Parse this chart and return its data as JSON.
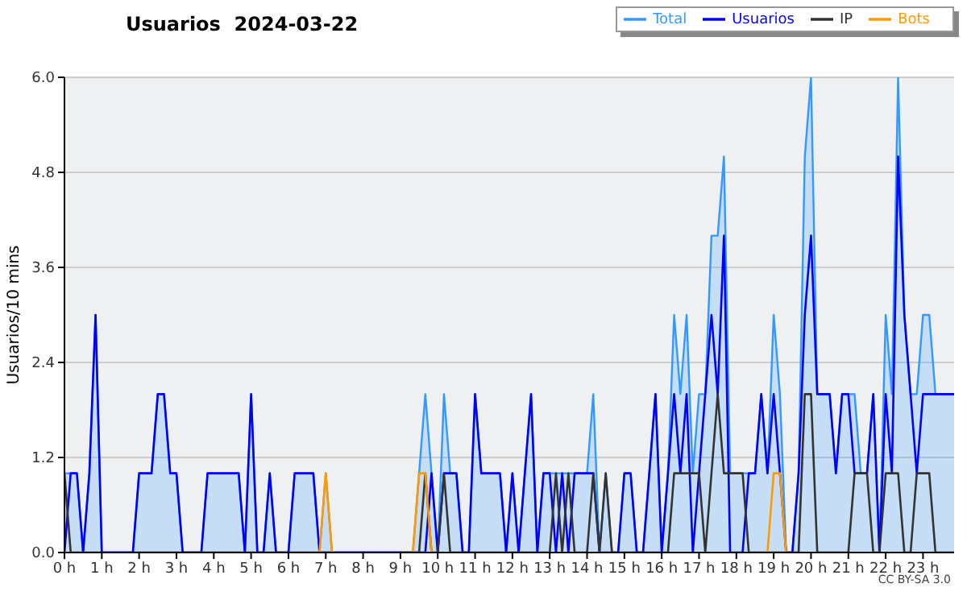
{
  "chart_data": {
    "type": "line",
    "title": "Usuarios  2024-03-22",
    "ylabel": "Usuarios/10 mins",
    "annotations": [
      "CC BY-SA 3.0"
    ],
    "x": [
      0,
      0.167,
      0.333,
      0.5,
      0.667,
      0.833,
      1,
      1.167,
      1.333,
      1.5,
      1.667,
      1.833,
      2,
      2.167,
      2.333,
      2.5,
      2.667,
      2.833,
      3,
      3.167,
      3.333,
      3.5,
      3.667,
      3.833,
      4,
      4.167,
      4.333,
      4.5,
      4.667,
      4.833,
      5,
      5.167,
      5.333,
      5.5,
      5.667,
      5.833,
      6,
      6.167,
      6.333,
      6.5,
      6.667,
      6.833,
      7,
      7.167,
      7.333,
      7.5,
      7.667,
      7.833,
      8,
      8.167,
      8.333,
      8.5,
      8.667,
      8.833,
      9,
      9.167,
      9.333,
      9.5,
      9.667,
      9.833,
      10,
      10.167,
      10.333,
      10.5,
      10.667,
      10.833,
      11,
      11.167,
      11.333,
      11.5,
      11.667,
      11.833,
      12,
      12.167,
      12.333,
      12.5,
      12.667,
      12.833,
      13,
      13.167,
      13.333,
      13.5,
      13.667,
      13.833,
      14,
      14.167,
      14.333,
      14.5,
      14.667,
      14.833,
      15,
      15.167,
      15.333,
      15.5,
      15.667,
      15.833,
      16,
      16.167,
      16.333,
      16.5,
      16.667,
      16.833,
      17,
      17.167,
      17.333,
      17.5,
      17.667,
      17.833,
      18,
      18.167,
      18.333,
      18.5,
      18.667,
      18.833,
      19,
      19.167,
      19.333,
      19.5,
      19.667,
      19.833,
      20,
      20.167,
      20.333,
      20.5,
      20.667,
      20.833,
      21,
      21.167,
      21.333,
      21.5,
      21.667,
      21.833,
      22,
      22.167,
      22.333,
      22.5,
      22.667,
      22.833,
      23,
      23.167,
      23.333,
      23.5,
      23.667,
      23.833
    ],
    "series": [
      {
        "name": "Total",
        "type": "area",
        "color": "#3399ff",
        "values": [
          1,
          1,
          1,
          0,
          1,
          3,
          0,
          0,
          0,
          0,
          0,
          0,
          1,
          1,
          1,
          2,
          2,
          1,
          1,
          0,
          0,
          0,
          0,
          1,
          1,
          1,
          1,
          1,
          1,
          0,
          2,
          0,
          0,
          1,
          0,
          0,
          0,
          1,
          1,
          1,
          1,
          0,
          1,
          0,
          0,
          0,
          0,
          0,
          0,
          0,
          0,
          0,
          0,
          0,
          0,
          0,
          0,
          1,
          2,
          1,
          0,
          2,
          1,
          1,
          0,
          0,
          2,
          1,
          1,
          1,
          1,
          0,
          1,
          0,
          1,
          2,
          0,
          1,
          1,
          1,
          1,
          1,
          1,
          1,
          1,
          2,
          0,
          1,
          0,
          0,
          1,
          1,
          0,
          0,
          1,
          2,
          0,
          1,
          3,
          2,
          3,
          1,
          2,
          2,
          4,
          4,
          5,
          1,
          1,
          1,
          1,
          1,
          2,
          1,
          3,
          2,
          0,
          0,
          1,
          5,
          6,
          2,
          2,
          2,
          1,
          2,
          2,
          2,
          1,
          1,
          2,
          0,
          3,
          2,
          6,
          3,
          2,
          2,
          3,
          3,
          2,
          2,
          2,
          2
        ]
      },
      {
        "name": "Usuarios",
        "color": "#0000ff",
        "values": [
          0,
          1,
          1,
          0,
          1,
          3,
          0,
          0,
          0,
          0,
          0,
          0,
          1,
          1,
          1,
          2,
          2,
          1,
          1,
          0,
          0,
          0,
          0,
          1,
          1,
          1,
          1,
          1,
          1,
          0,
          2,
          0,
          0,
          1,
          0,
          0,
          0,
          1,
          1,
          1,
          1,
          0,
          0,
          0,
          0,
          0,
          0,
          0,
          0,
          0,
          0,
          0,
          0,
          0,
          0,
          0,
          0,
          0,
          0,
          1,
          0,
          1,
          1,
          1,
          0,
          0,
          2,
          1,
          1,
          1,
          1,
          0,
          1,
          0,
          1,
          2,
          0,
          1,
          1,
          0,
          1,
          0,
          1,
          1,
          1,
          1,
          0,
          0,
          0,
          0,
          1,
          1,
          0,
          0,
          1,
          2,
          0,
          1,
          2,
          1,
          2,
          0,
          1,
          2,
          3,
          2,
          4,
          0,
          0,
          0,
          1,
          1,
          2,
          1,
          2,
          1,
          0,
          0,
          1,
          3,
          4,
          2,
          2,
          2,
          1,
          2,
          2,
          1,
          1,
          1,
          2,
          0,
          2,
          1,
          5,
          3,
          2,
          1,
          2,
          2,
          2,
          2,
          2,
          2
        ]
      },
      {
        "name": "IP",
        "color": "#333333",
        "values": [
          1,
          0,
          0,
          0,
          0,
          0,
          0,
          0,
          0,
          0,
          0,
          0,
          0,
          0,
          0,
          0,
          0,
          0,
          0,
          0,
          0,
          0,
          0,
          0,
          0,
          0,
          0,
          0,
          0,
          0,
          0,
          0,
          0,
          0,
          0,
          0,
          0,
          0,
          0,
          0,
          0,
          0,
          0,
          0,
          0,
          0,
          0,
          0,
          0,
          0,
          0,
          0,
          0,
          0,
          0,
          0,
          0,
          0,
          1,
          0,
          0,
          1,
          0,
          0,
          0,
          0,
          0,
          0,
          0,
          0,
          0,
          0,
          0,
          0,
          0,
          0,
          0,
          0,
          0,
          1,
          0,
          1,
          0,
          0,
          0,
          1,
          0,
          1,
          0,
          0,
          0,
          0,
          0,
          0,
          0,
          0,
          0,
          0,
          1,
          1,
          1,
          1,
          1,
          0,
          1,
          2,
          1,
          1,
          1,
          1,
          0,
          0,
          0,
          0,
          0,
          0,
          0,
          0,
          0,
          2,
          2,
          0,
          0,
          0,
          0,
          0,
          0,
          1,
          1,
          1,
          0,
          0,
          1,
          1,
          1,
          0,
          0,
          1,
          1,
          1,
          0,
          0,
          0,
          0
        ]
      },
      {
        "name": "Bots",
        "color": "#ff9900",
        "values": [
          null,
          null,
          null,
          null,
          null,
          null,
          null,
          null,
          null,
          null,
          null,
          null,
          null,
          null,
          null,
          null,
          null,
          null,
          null,
          null,
          null,
          null,
          null,
          null,
          null,
          null,
          null,
          null,
          null,
          null,
          null,
          null,
          null,
          null,
          null,
          null,
          null,
          null,
          null,
          null,
          null,
          0,
          1,
          0,
          null,
          null,
          null,
          null,
          null,
          null,
          null,
          null,
          null,
          null,
          null,
          null,
          0,
          1,
          1,
          0,
          null,
          null,
          null,
          null,
          null,
          null,
          null,
          null,
          null,
          null,
          null,
          null,
          null,
          null,
          null,
          null,
          null,
          null,
          null,
          null,
          null,
          null,
          null,
          null,
          null,
          null,
          null,
          null,
          null,
          null,
          null,
          null,
          null,
          null,
          null,
          null,
          null,
          null,
          null,
          null,
          null,
          null,
          null,
          null,
          null,
          null,
          null,
          null,
          null,
          null,
          null,
          null,
          null,
          0,
          1,
          1,
          0,
          null,
          null,
          null,
          null,
          null,
          null,
          null,
          null,
          null,
          null,
          null,
          null,
          null,
          null,
          null,
          null,
          null,
          null,
          null,
          null,
          null,
          null,
          null,
          null,
          null,
          null,
          null
        ]
      }
    ],
    "xlim": [
      0,
      23.833
    ],
    "xticks": [
      {
        "value": 0,
        "label": "0 h"
      },
      {
        "value": 1,
        "label": "1 h"
      },
      {
        "value": 2,
        "label": "2 h"
      },
      {
        "value": 3,
        "label": "3 h"
      },
      {
        "value": 4,
        "label": "4 h"
      },
      {
        "value": 5,
        "label": "5 h"
      },
      {
        "value": 6,
        "label": "6 h"
      },
      {
        "value": 7,
        "label": "7 h"
      },
      {
        "value": 8,
        "label": "8 h"
      },
      {
        "value": 9,
        "label": "9 h"
      },
      {
        "value": 10,
        "label": "10 h"
      },
      {
        "value": 11,
        "label": "11 h"
      },
      {
        "value": 12,
        "label": "12 h"
      },
      {
        "value": 13,
        "label": "13 h"
      },
      {
        "value": 14,
        "label": "14 h"
      },
      {
        "value": 15,
        "label": "15 h"
      },
      {
        "value": 16,
        "label": "16 h"
      },
      {
        "value": 17,
        "label": "17 h"
      },
      {
        "value": 18,
        "label": "18 h"
      },
      {
        "value": 19,
        "label": "19 h"
      },
      {
        "value": 20,
        "label": "20 h"
      },
      {
        "value": 21,
        "label": "21 h"
      },
      {
        "value": 22,
        "label": "22 h"
      },
      {
        "value": 23,
        "label": "23 h"
      }
    ],
    "ylim": [
      0,
      6
    ],
    "yticks": [
      {
        "value": 0,
        "label": "0.0"
      },
      {
        "value": 1.2,
        "label": "1.2"
      },
      {
        "value": 2.4,
        "label": "2.4"
      },
      {
        "value": 3.6,
        "label": "3.6"
      },
      {
        "value": 4.8,
        "label": "4.8"
      },
      {
        "value": 6,
        "label": "6.0"
      }
    ],
    "grid": "y",
    "legend": "top right",
    "marker": "none",
    "line_style": "solid"
  }
}
